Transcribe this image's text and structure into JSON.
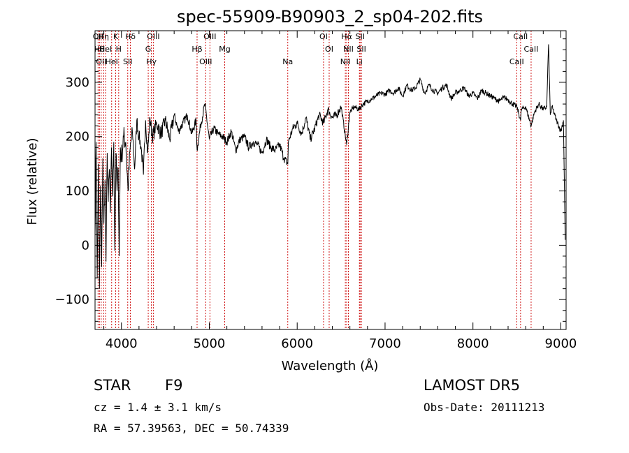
{
  "chart_data": {
    "type": "line",
    "title": "spec-55909-B90903_2_sp04-202.fits",
    "xlabel": "Wavelength (Å)",
    "ylabel": "Flux (relative)",
    "xlim": [
      3700,
      9060
    ],
    "ylim": [
      -155,
      395
    ],
    "xticks": [
      4000,
      5000,
      6000,
      7000,
      8000,
      9000
    ],
    "yticks": [
      -100,
      0,
      100,
      200,
      300
    ],
    "series": [
      {
        "x": [
          3700,
          3712,
          3725,
          3738,
          3750,
          3763,
          3775,
          3788,
          3800,
          3813,
          3825,
          3838,
          3850,
          3863,
          3875,
          3888,
          3900,
          3913,
          3925,
          3938,
          3950,
          3963,
          3975,
          3988,
          4000,
          4025,
          4050,
          4075,
          4100,
          4125,
          4150,
          4175,
          4200,
          4225,
          4250,
          4275,
          4300,
          4325,
          4350,
          4375,
          4400,
          4450,
          4500,
          4550,
          4600,
          4650,
          4700,
          4750,
          4800,
          4850,
          4861,
          4900,
          4950,
          5000,
          5050,
          5100,
          5150,
          5200,
          5250,
          5300,
          5350,
          5400,
          5450,
          5500,
          5550,
          5600,
          5650,
          5700,
          5750,
          5800,
          5850,
          5893,
          5900,
          5950,
          6000,
          6050,
          6100,
          6150,
          6200,
          6250,
          6300,
          6350,
          6400,
          6450,
          6500,
          6563,
          6600,
          6650,
          6700,
          6750,
          6800,
          6850,
          6900,
          6950,
          7000,
          7050,
          7100,
          7150,
          7200,
          7250,
          7300,
          7350,
          7400,
          7450,
          7500,
          7550,
          7600,
          7650,
          7700,
          7750,
          7800,
          7850,
          7900,
          7950,
          8000,
          8050,
          8100,
          8150,
          8200,
          8250,
          8300,
          8350,
          8400,
          8450,
          8500,
          8542,
          8550,
          8600,
          8662,
          8700,
          8750,
          8800,
          8840,
          8860,
          8880,
          8900,
          8950,
          9000,
          9030,
          9050
        ],
        "values": [
          20,
          190,
          -60,
          150,
          -80,
          110,
          -40,
          160,
          40,
          120,
          -30,
          170,
          80,
          140,
          60,
          180,
          90,
          190,
          -10,
          170,
          100,
          140,
          -20,
          180,
          160,
          200,
          190,
          100,
          180,
          210,
          140,
          230,
          200,
          180,
          130,
          230,
          170,
          235,
          200,
          210,
          225,
          205,
          230,
          195,
          240,
          210,
          225,
          240,
          205,
          230,
          175,
          220,
          260,
          195,
          215,
          205,
          200,
          190,
          210,
          175,
          195,
          200,
          180,
          190,
          185,
          170,
          195,
          180,
          175,
          185,
          160,
          150,
          190,
          215,
          225,
          205,
          235,
          195,
          215,
          240,
          225,
          250,
          235,
          240,
          255,
          185,
          245,
          255,
          250,
          260,
          265,
          270,
          275,
          280,
          278,
          285,
          280,
          290,
          275,
          295,
          285,
          290,
          305,
          280,
          295,
          285,
          280,
          290,
          295,
          270,
          280,
          285,
          290,
          275,
          280,
          270,
          285,
          280,
          275,
          270,
          265,
          272,
          268,
          260,
          255,
          230,
          250,
          255,
          220,
          245,
          260,
          250,
          255,
          370,
          240,
          255,
          230,
          210,
          230,
          10
        ]
      }
    ],
    "lines": [
      {
        "wave": 3734,
        "label": "OII"
      },
      {
        "wave": 3750,
        "label": "Hθ"
      },
      {
        "wave": 3770,
        "label": "OII"
      },
      {
        "wave": 3798,
        "label": "Hη"
      },
      {
        "wave": 3820,
        "label": "HeI"
      },
      {
        "wave": 3889,
        "label": "HeI"
      },
      {
        "wave": 3934,
        "label": "K"
      },
      {
        "wave": 3969,
        "label": "H"
      },
      {
        "wave": 4072,
        "label": "SII"
      },
      {
        "wave": 4102,
        "label": "Hδ"
      },
      {
        "wave": 4305,
        "label": "G"
      },
      {
        "wave": 4341,
        "label": "Hγ"
      },
      {
        "wave": 4363,
        "label": "OIII"
      },
      {
        "wave": 4861,
        "label": "Hβ"
      },
      {
        "wave": 4959,
        "label": "OIII"
      },
      {
        "wave": 5007,
        "label": "OIII"
      },
      {
        "wave": 5175,
        "label": "Mg"
      },
      {
        "wave": 5893,
        "label": "Na"
      },
      {
        "wave": 6300,
        "label": "OI"
      },
      {
        "wave": 6364,
        "label": "OI"
      },
      {
        "wave": 6548,
        "label": "NII"
      },
      {
        "wave": 6563,
        "label": "Hα"
      },
      {
        "wave": 6583,
        "label": "NII"
      },
      {
        "wave": 6708,
        "label": "Li"
      },
      {
        "wave": 6716,
        "label": "SII"
      },
      {
        "wave": 6731,
        "label": "SII"
      },
      {
        "wave": 8498,
        "label": "CaII"
      },
      {
        "wave": 8542,
        "label": "CaII"
      },
      {
        "wave": 8662,
        "label": "CaII"
      }
    ],
    "line_color": "#000000",
    "marker_color": "#cc0000"
  },
  "info": {
    "class_label": "STAR",
    "subclass": "F9",
    "survey": "LAMOST DR5",
    "cz": "cz = 1.4 ± 3.1 km/s",
    "obs_date": "Obs-Date: 20111213",
    "coords": "RA =  57.39563, DEC =  50.74339"
  }
}
